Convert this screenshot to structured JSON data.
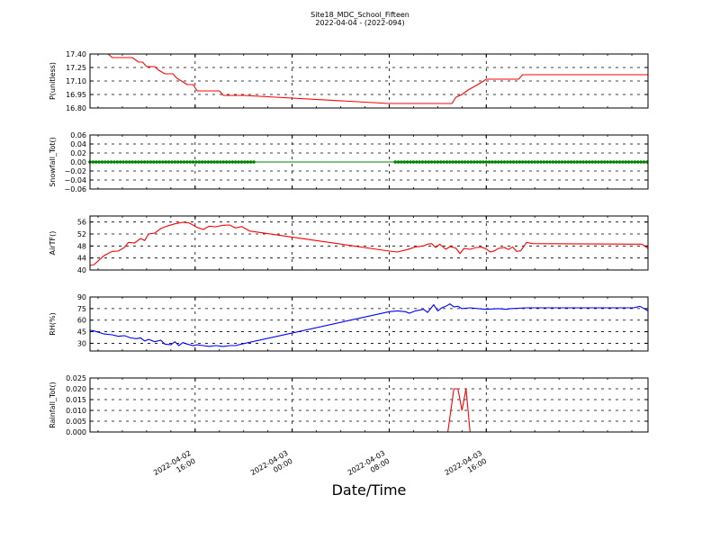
{
  "title": {
    "site": "Site18_MDC_School_Fifteen",
    "date_line": "2022-04-04 - (2022-094)"
  },
  "chart_data": {
    "type": "line",
    "xlabel": "Date/Time",
    "x_range": [
      "2022-04-02 07:20",
      "2022-04-04 05:20"
    ],
    "x_ticks": [
      {
        "value": "2022-04-02 16:00",
        "label": [
          "2022-04-02",
          "16:00"
        ]
      },
      {
        "value": "2022-04-03 00:00",
        "label": [
          "2022-04-03",
          "00:00"
        ]
      },
      {
        "value": "2022-04-03 08:00",
        "label": [
          "2022-04-03",
          "08:00"
        ]
      },
      {
        "value": "2022-04-03 16:00",
        "label": [
          "2022-04-03",
          "16:00"
        ]
      }
    ],
    "grid": true,
    "panels": [
      {
        "ylabel": "P(unitless)",
        "ylim": [
          16.8,
          17.4
        ],
        "yticks": [
          "17.40",
          "17.25",
          "17.10",
          "16.95",
          "16.80"
        ],
        "color": "#ff0000",
        "marker": "none",
        "series": [
          [
            "2022-04-02 07:20",
            17.4
          ],
          [
            "2022-04-02 08:50",
            17.4
          ],
          [
            "2022-04-02 09:10",
            17.36
          ],
          [
            "2022-04-02 10:50",
            17.36
          ],
          [
            "2022-04-02 11:20",
            17.31
          ],
          [
            "2022-04-02 11:40",
            17.31
          ],
          [
            "2022-04-02 12:00",
            17.26
          ],
          [
            "2022-04-02 12:40",
            17.26
          ],
          [
            "2022-04-02 13:00",
            17.22
          ],
          [
            "2022-04-02 13:30",
            17.18
          ],
          [
            "2022-04-02 14:10",
            17.18
          ],
          [
            "2022-04-02 14:30",
            17.13
          ],
          [
            "2022-04-02 15:00",
            17.09
          ],
          [
            "2022-04-02 15:20",
            17.06
          ],
          [
            "2022-04-02 15:50",
            17.06
          ],
          [
            "2022-04-02 16:10",
            16.99
          ],
          [
            "2022-04-02 18:00",
            16.99
          ],
          [
            "2022-04-02 18:20",
            16.94
          ],
          [
            "2022-04-02 20:00",
            16.94
          ],
          [
            "2022-04-03 08:00",
            16.85
          ],
          [
            "2022-04-03 13:10",
            16.85
          ],
          [
            "2022-04-03 13:30",
            16.92
          ],
          [
            "2022-04-03 14:00",
            16.95
          ],
          [
            "2022-04-03 14:30",
            17.0
          ],
          [
            "2022-04-03 15:10",
            17.05
          ],
          [
            "2022-04-03 15:40",
            17.09
          ],
          [
            "2022-04-03 16:00",
            17.12
          ],
          [
            "2022-04-03 18:40",
            17.12
          ],
          [
            "2022-04-03 19:00",
            17.17
          ],
          [
            "2022-04-04 05:20",
            17.17
          ]
        ]
      },
      {
        "ylabel": "Snowfall_Tot()",
        "ylim": [
          -0.06,
          0.06
        ],
        "yticks": [
          "0.06",
          "0.04",
          "0.02",
          "0.00",
          "−0.02",
          "−0.04",
          "−0.06"
        ],
        "color": "#008000",
        "marker": "dot",
        "constant": 0.0,
        "dotted_intervals": [
          [
            "2022-04-02 07:20",
            "2022-04-02 21:00"
          ],
          [
            "2022-04-03 08:30",
            "2022-04-04 05:20"
          ]
        ],
        "dot_step_minutes": 15
      },
      {
        "ylabel": "AirTF()",
        "ylim": [
          40,
          58
        ],
        "yticks": [
          "56",
          "52",
          "48",
          "44",
          "40"
        ],
        "color": "#ff0000",
        "marker": "none",
        "series": [
          [
            "2022-04-02 07:20",
            41.5
          ],
          [
            "2022-04-02 07:40",
            41.8
          ],
          [
            "2022-04-02 08:30",
            44.8
          ],
          [
            "2022-04-02 09:10",
            46.2
          ],
          [
            "2022-04-02 09:40",
            46.3
          ],
          [
            "2022-04-02 10:10",
            47.5
          ],
          [
            "2022-04-02 10:30",
            49.2
          ],
          [
            "2022-04-02 11:00",
            49.0
          ],
          [
            "2022-04-02 11:30",
            50.5
          ],
          [
            "2022-04-02 11:50",
            49.8
          ],
          [
            "2022-04-02 12:10",
            52.0
          ],
          [
            "2022-04-02 12:40",
            52.3
          ],
          [
            "2022-04-02 13:10",
            53.8
          ],
          [
            "2022-04-02 13:40",
            54.6
          ],
          [
            "2022-04-02 14:20",
            55.4
          ],
          [
            "2022-04-02 15:00",
            55.9
          ],
          [
            "2022-04-02 15:30",
            55.7
          ],
          [
            "2022-04-02 16:10",
            54.2
          ],
          [
            "2022-04-02 16:40",
            53.5
          ],
          [
            "2022-04-02 17:10",
            54.6
          ],
          [
            "2022-04-02 17:40",
            54.4
          ],
          [
            "2022-04-02 18:20",
            54.9
          ],
          [
            "2022-04-02 18:50",
            55.0
          ],
          [
            "2022-04-02 19:20",
            54.0
          ],
          [
            "2022-04-02 19:50",
            54.5
          ],
          [
            "2022-04-02 20:30",
            53.0
          ],
          [
            "2022-04-03 08:00",
            46.3
          ],
          [
            "2022-04-03 08:40",
            46.0
          ],
          [
            "2022-04-03 09:30",
            46.8
          ],
          [
            "2022-04-03 10:10",
            47.7
          ],
          [
            "2022-04-03 10:50",
            48.0
          ],
          [
            "2022-04-03 11:10",
            48.6
          ],
          [
            "2022-04-03 11:30",
            48.8
          ],
          [
            "2022-04-03 11:50",
            47.5
          ],
          [
            "2022-04-03 12:10",
            48.6
          ],
          [
            "2022-04-03 12:40",
            46.9
          ],
          [
            "2022-04-03 13:00",
            47.8
          ],
          [
            "2022-04-03 13:30",
            47.3
          ],
          [
            "2022-04-03 13:50",
            45.5
          ],
          [
            "2022-04-03 14:10",
            47.2
          ],
          [
            "2022-04-03 14:40",
            46.9
          ],
          [
            "2022-04-03 15:10",
            47.5
          ],
          [
            "2022-04-03 15:40",
            47.6
          ],
          [
            "2022-04-03 16:00",
            47.0
          ],
          [
            "2022-04-03 16:20",
            46.0
          ],
          [
            "2022-04-03 16:40",
            46.4
          ],
          [
            "2022-04-03 17:00",
            47.2
          ],
          [
            "2022-04-03 17:30",
            47.5
          ],
          [
            "2022-04-03 17:50",
            46.8
          ],
          [
            "2022-04-03 18:10",
            47.7
          ],
          [
            "2022-04-03 18:30",
            46.2
          ],
          [
            "2022-04-03 18:50",
            46.4
          ],
          [
            "2022-04-03 19:20",
            49.2
          ],
          [
            "2022-04-03 19:50",
            48.8
          ],
          [
            "2022-04-04 04:50",
            48.6
          ],
          [
            "2022-04-04 05:20",
            47.2
          ]
        ]
      },
      {
        "ylabel": "RH(%)",
        "ylim": [
          20,
          90
        ],
        "yticks": [
          "90",
          "75",
          "60",
          "45",
          "30"
        ],
        "color": "#0000ff",
        "marker": "none",
        "series": [
          [
            "2022-04-02 07:20",
            47
          ],
          [
            "2022-04-02 07:40",
            46
          ],
          [
            "2022-04-02 08:30",
            42
          ],
          [
            "2022-04-02 09:10",
            41
          ],
          [
            "2022-04-02 09:40",
            39
          ],
          [
            "2022-04-02 10:10",
            40
          ],
          [
            "2022-04-02 10:40",
            37
          ],
          [
            "2022-04-02 11:10",
            36
          ],
          [
            "2022-04-02 11:30",
            37
          ],
          [
            "2022-04-02 11:50",
            33
          ],
          [
            "2022-04-02 12:10",
            35
          ],
          [
            "2022-04-02 12:40",
            32
          ],
          [
            "2022-04-02 13:10",
            34
          ],
          [
            "2022-04-02 13:30",
            29
          ],
          [
            "2022-04-02 14:00",
            28
          ],
          [
            "2022-04-02 14:20",
            32
          ],
          [
            "2022-04-02 14:40",
            27
          ],
          [
            "2022-04-02 15:00",
            31
          ],
          [
            "2022-04-02 15:20",
            29
          ],
          [
            "2022-04-02 15:50",
            27
          ],
          [
            "2022-04-02 16:10",
            28
          ],
          [
            "2022-04-02 16:40",
            27
          ],
          [
            "2022-04-02 17:10",
            26
          ],
          [
            "2022-04-02 17:40",
            27
          ],
          [
            "2022-04-02 18:20",
            26
          ],
          [
            "2022-04-02 18:50",
            27
          ],
          [
            "2022-04-02 19:20",
            27
          ],
          [
            "2022-04-02 19:50",
            29
          ],
          [
            "2022-04-03 08:00",
            71
          ],
          [
            "2022-04-03 08:40",
            72
          ],
          [
            "2022-04-03 09:20",
            71
          ],
          [
            "2022-04-03 09:40",
            69
          ],
          [
            "2022-04-03 10:10",
            72
          ],
          [
            "2022-04-03 10:50",
            74
          ],
          [
            "2022-04-03 11:10",
            70
          ],
          [
            "2022-04-03 11:40",
            80
          ],
          [
            "2022-04-03 12:00",
            72
          ],
          [
            "2022-04-03 12:20",
            76
          ],
          [
            "2022-04-03 12:40",
            78
          ],
          [
            "2022-04-03 13:00",
            81
          ],
          [
            "2022-04-03 13:20",
            77
          ],
          [
            "2022-04-03 13:40",
            78
          ],
          [
            "2022-04-03 14:00",
            75
          ],
          [
            "2022-04-03 14:40",
            76
          ],
          [
            "2022-04-03 15:20",
            75
          ],
          [
            "2022-04-03 16:00",
            74
          ],
          [
            "2022-04-03 17:00",
            75
          ],
          [
            "2022-04-03 17:40",
            74
          ],
          [
            "2022-04-03 18:00",
            75
          ],
          [
            "2022-04-03 19:20",
            76
          ],
          [
            "2022-04-04 04:10",
            76
          ],
          [
            "2022-04-04 04:40",
            78
          ],
          [
            "2022-04-04 05:20",
            72
          ]
        ]
      },
      {
        "ylabel": "Rainfall_Tot()",
        "ylim": [
          0.0,
          0.025
        ],
        "yticks": [
          "0.025",
          "0.020",
          "0.015",
          "0.010",
          "0.005",
          "0.000"
        ],
        "color": "#ff0000",
        "marker": "none",
        "series": [
          [
            "2022-04-02 07:20",
            0.0
          ],
          [
            "2022-04-03 12:50",
            0.0
          ],
          [
            "2022-04-03 13:20",
            0.02
          ],
          [
            "2022-04-03 13:40",
            0.02
          ],
          [
            "2022-04-03 14:00",
            0.01
          ],
          [
            "2022-04-03 14:20",
            0.02
          ],
          [
            "2022-04-03 14:40",
            0.0
          ],
          [
            "2022-04-04 05:20",
            0.0
          ]
        ]
      }
    ]
  }
}
